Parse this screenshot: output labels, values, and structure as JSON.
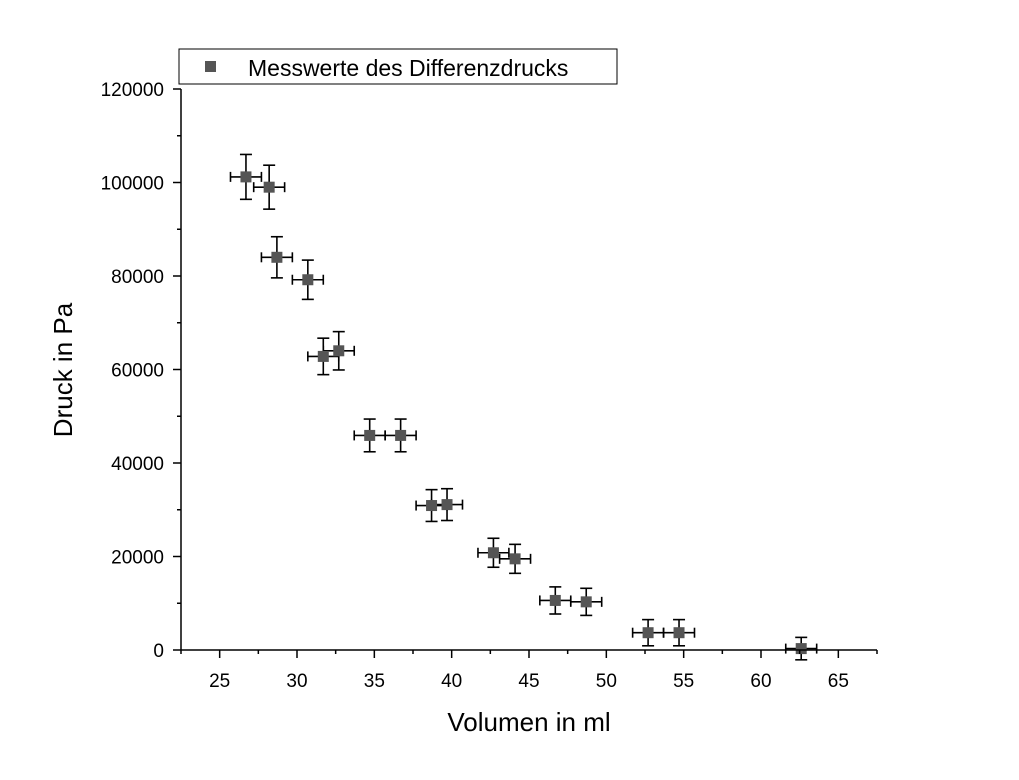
{
  "chart_data": {
    "type": "scatter",
    "xlabel": "Volumen in ml",
    "ylabel": "Druck in Pa",
    "xlim": [
      22.5,
      67.5
    ],
    "ylim": [
      0,
      120000
    ],
    "xticks": [
      "25",
      "30",
      "35",
      "40",
      "45",
      "50",
      "55",
      "60",
      "65"
    ],
    "yticks": [
      "0",
      "20000",
      "40000",
      "60000",
      "80000",
      "100000",
      "120000"
    ],
    "grid": false,
    "legend": "top-left",
    "series": [
      {
        "name": "Messwerte des Differenzdrucks",
        "marker": "square",
        "color": "#555555",
        "x_error": 1,
        "points": [
          {
            "x": 26.7,
            "y": 101200,
            "yerr": 4800
          },
          {
            "x": 28.2,
            "y": 99000,
            "yerr": 4700
          },
          {
            "x": 28.7,
            "y": 84000,
            "yerr": 4400
          },
          {
            "x": 30.7,
            "y": 79200,
            "yerr": 4200
          },
          {
            "x": 31.7,
            "y": 62800,
            "yerr": 3900
          },
          {
            "x": 32.7,
            "y": 64000,
            "yerr": 4100
          },
          {
            "x": 34.7,
            "y": 45900,
            "yerr": 3500
          },
          {
            "x": 36.7,
            "y": 45900,
            "yerr": 3500
          },
          {
            "x": 38.7,
            "y": 30900,
            "yerr": 3400
          },
          {
            "x": 39.7,
            "y": 31100,
            "yerr": 3400
          },
          {
            "x": 42.7,
            "y": 20800,
            "yerr": 3100
          },
          {
            "x": 44.1,
            "y": 19500,
            "yerr": 3100
          },
          {
            "x": 46.7,
            "y": 10600,
            "yerr": 2900
          },
          {
            "x": 48.7,
            "y": 10300,
            "yerr": 2900
          },
          {
            "x": 52.7,
            "y": 3700,
            "yerr": 2800
          },
          {
            "x": 54.7,
            "y": 3700,
            "yerr": 2800
          },
          {
            "x": 62.6,
            "y": 300,
            "yerr": 2400
          }
        ]
      }
    ]
  }
}
